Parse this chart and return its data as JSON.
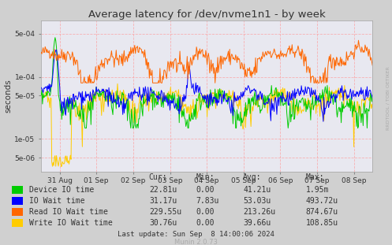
{
  "title": "Average latency for /dev/nvme1n1 - by week",
  "ylabel": "seconds",
  "background_color": "#d0d0d0",
  "plot_bg_color": "#e8e8f0",
  "grid_color": "#ff9999",
  "ylim": [
    3e-06,
    0.0008
  ],
  "xtick_labels": [
    "31 Aug",
    "01 Sep",
    "02 Sep",
    "03 Sep",
    "04 Sep",
    "05 Sep",
    "06 Sep",
    "07 Sep",
    "08 Sep"
  ],
  "xtick_positions": [
    0.5,
    1.5,
    2.5,
    3.5,
    4.5,
    5.5,
    6.5,
    7.5,
    8.5
  ],
  "ytick_values": [
    5e-06,
    1e-05,
    5e-05,
    0.0001,
    0.0005
  ],
  "ytick_labels": [
    "5e-06",
    "1e-05",
    "5e-05",
    "1e-04",
    "5e-04"
  ],
  "series_colors": {
    "device_io": "#00cc00",
    "io_wait": "#0000ff",
    "read_io_wait": "#ff6600",
    "write_io_wait": "#ffcc00"
  },
  "legend": [
    {
      "label": "Device IO time",
      "color": "#00cc00"
    },
    {
      "label": "IO Wait time",
      "color": "#0000ff"
    },
    {
      "label": "Read IO Wait time",
      "color": "#ff6600"
    },
    {
      "label": "Write IO Wait time",
      "color": "#ffcc00"
    }
  ],
  "table_headers": [
    "Cur:",
    "Min:",
    "Avg:",
    "Max:"
  ],
  "table_data": [
    [
      "22.81u",
      "0.00",
      "41.21u",
      "1.95m"
    ],
    [
      "31.17u",
      "7.83u",
      "53.03u",
      "493.72u"
    ],
    [
      "229.55u",
      "0.00",
      "213.26u",
      "874.67u"
    ],
    [
      "30.76u",
      "0.00",
      "39.66u",
      "108.85u"
    ]
  ],
  "footer": "Last update: Sun Sep  8 14:00:06 2024",
  "munin_label": "Munin 2.0.73",
  "rrdtool_label": "RRDTOOL / TOBI OETIKER"
}
